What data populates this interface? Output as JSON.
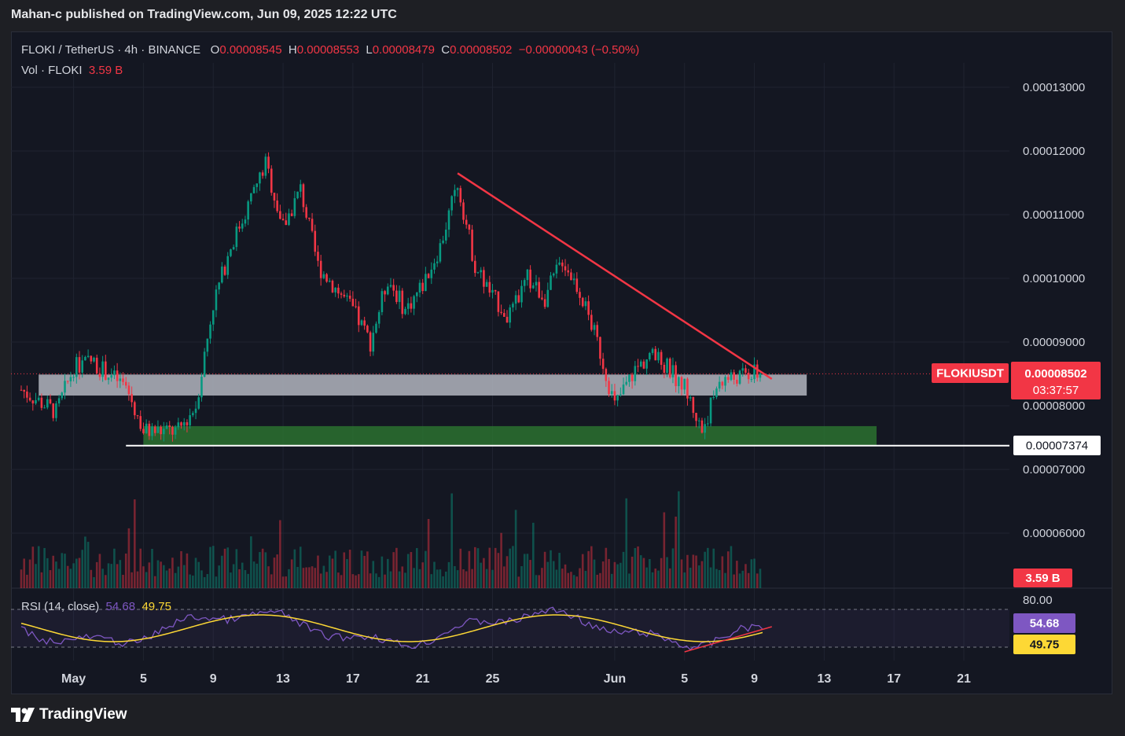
{
  "publish_line": "Mahan-c published on TradingView.com, Jun 09, 2025 12:22 UTC",
  "legend": {
    "symbol": "FLOKI / TetherUS · 4h · BINANCE",
    "o_label": "O",
    "o": "0.00008545",
    "h_label": "H",
    "h": "0.00008553",
    "l_label": "L",
    "l": "0.00008479",
    "c_label": "C",
    "c": "0.00008502",
    "change": "−0.00000043 (−0.50%)"
  },
  "vol_legend": {
    "label": "Vol · FLOKI",
    "value": "3.59 B"
  },
  "rsi_legend": {
    "label": "RSI (14, close)",
    "rsi": "54.68",
    "ma": "49.75"
  },
  "price_labels": {
    "ticker": "FLOKIUSDT",
    "last": "0.00008502",
    "countdown": "03:37:57",
    "support": "0.00007374",
    "volume": "3.59 B",
    "rsi": "54.68",
    "rsi_ma": "49.75",
    "rsi_level": "80.00"
  },
  "y_ticks": [
    "0.00013000",
    "0.00012000",
    "0.00011000",
    "0.00010000",
    "0.00009000",
    "0.00008000",
    "0.00007000",
    "0.00006000"
  ],
  "x_ticks": [
    "May",
    "5",
    "9",
    "13",
    "17",
    "21",
    "25",
    "Jun",
    "5",
    "9",
    "13",
    "17",
    "21"
  ],
  "footer": {
    "brand": "TradingView"
  },
  "colors": {
    "up": "#089981",
    "down": "#f23645",
    "trend": "#f23645",
    "rsi": "#7e57c2",
    "rsi_ma": "#fdd835",
    "zone_grey": "#b2b5be",
    "zone_green": "#2e7d32",
    "bg": "#141722"
  },
  "chart_data": {
    "type": "candlestick",
    "title": "FLOKI / TetherUS · 4h · BINANCE",
    "xlabel": "",
    "ylabel": "",
    "ylim": [
      5.5e-05,
      0.000135
    ],
    "x_range": [
      "2025-04-28",
      "2025-06-24"
    ],
    "price_anchors": [
      {
        "date": "2025-04-28",
        "close": 8.25e-05
      },
      {
        "date": "2025-04-30",
        "close": 7.9e-05
      },
      {
        "date": "2025-05-01",
        "close": 8.6e-05
      },
      {
        "date": "2025-05-02",
        "close": 8.7e-05
      },
      {
        "date": "2025-05-04",
        "close": 8.3e-05
      },
      {
        "date": "2025-05-05",
        "close": 7.6e-05
      },
      {
        "date": "2025-05-07",
        "close": 7.6e-05
      },
      {
        "date": "2025-05-08",
        "close": 8e-05
      },
      {
        "date": "2025-05-09",
        "close": 9.6e-05
      },
      {
        "date": "2025-05-10",
        "close": 0.000105
      },
      {
        "date": "2025-05-12",
        "close": 0.000118
      },
      {
        "date": "2025-05-13",
        "close": 0.000108
      },
      {
        "date": "2025-05-14",
        "close": 0.000114
      },
      {
        "date": "2025-05-15",
        "close": 0.000102
      },
      {
        "date": "2025-05-17",
        "close": 9.5e-05
      },
      {
        "date": "2025-05-18",
        "close": 9e-05
      },
      {
        "date": "2025-05-19",
        "close": 0.0001
      },
      {
        "date": "2025-05-20",
        "close": 9.5e-05
      },
      {
        "date": "2025-05-21",
        "close": 9.9e-05
      },
      {
        "date": "2025-05-22",
        "close": 0.000105
      },
      {
        "date": "2025-05-23",
        "close": 0.000115
      },
      {
        "date": "2025-05-24",
        "close": 0.000102
      },
      {
        "date": "2025-05-25",
        "close": 9.7e-05
      },
      {
        "date": "2025-05-26",
        "close": 9.4e-05
      },
      {
        "date": "2025-05-27",
        "close": 0.0001
      },
      {
        "date": "2025-05-28",
        "close": 9.7e-05
      },
      {
        "date": "2025-05-29",
        "close": 0.000103
      },
      {
        "date": "2025-05-30",
        "close": 9.8e-05
      },
      {
        "date": "2025-05-31",
        "close": 9e-05
      },
      {
        "date": "2025-06-01",
        "close": 8e-05
      },
      {
        "date": "2025-06-02",
        "close": 8.5e-05
      },
      {
        "date": "2025-06-03",
        "close": 8.8e-05
      },
      {
        "date": "2025-06-04",
        "close": 8.6e-05
      },
      {
        "date": "2025-06-05",
        "close": 8.3e-05
      },
      {
        "date": "2025-06-06",
        "close": 7.6e-05
      },
      {
        "date": "2025-06-07",
        "close": 8.4e-05
      },
      {
        "date": "2025-06-09",
        "close": 8.5e-05
      }
    ],
    "trendline": {
      "from": {
        "date": "2025-05-23",
        "price": 0.0001165
      },
      "to": {
        "date": "2025-06-10",
        "price": 8.42e-05
      }
    },
    "zones": [
      {
        "name": "resistance",
        "from": "2025-04-29",
        "to": "2025-06-12",
        "low": 8.16e-05,
        "high": 8.49e-05
      },
      {
        "name": "support",
        "from": "2025-05-05",
        "to": "2025-06-16",
        "low": 7.38e-05,
        "high": 7.68e-05
      }
    ],
    "support_line": 7.374e-05,
    "volume_last": "3.59 B",
    "rsi": {
      "last": 54.68,
      "ma_last": 49.75,
      "levels": [
        70,
        30
      ],
      "upper_axis_label": 80
    }
  }
}
